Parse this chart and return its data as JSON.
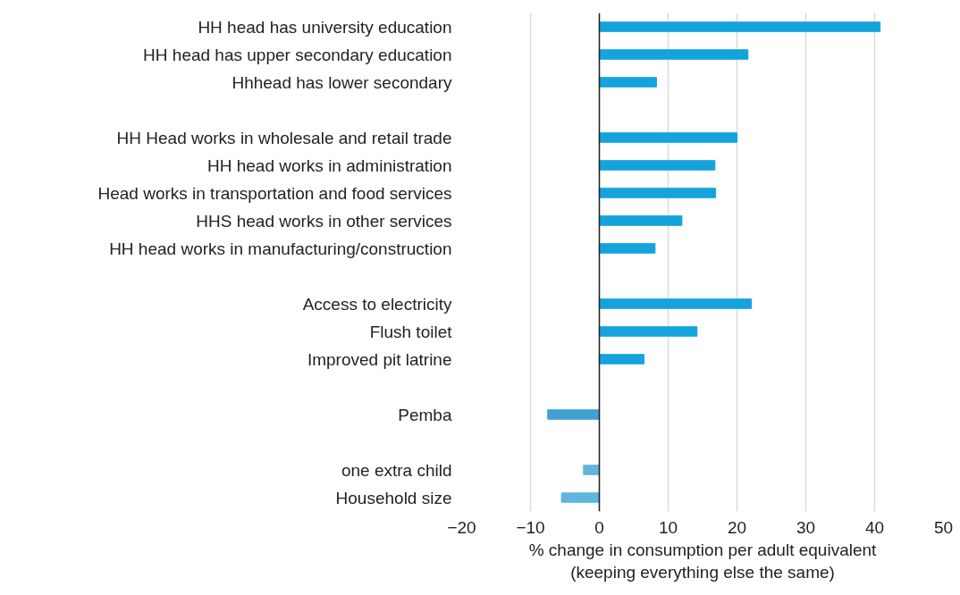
{
  "chart_data": {
    "type": "bar",
    "orientation": "horizontal",
    "xlabel": "% change in consumption per adult equivalent\n(keeping everything else the same)",
    "categories": [
      "HH head has university education",
      "HH head has upper secondary education",
      "Hhhead has lower secondary",
      null,
      "HH Head works in wholesale and retail trade",
      "HH head works in administration",
      "Head works in transportation and food services",
      "HHS head works in other services",
      "HH head works in manufacturing/construction",
      null,
      "Access to electricity",
      "Flush toilet",
      "Improved pit latrine",
      null,
      "Pemba",
      null,
      "one extra child",
      "Household size"
    ],
    "values": [
      40.8,
      21.6,
      8.3,
      null,
      20.0,
      16.8,
      16.9,
      12.0,
      8.1,
      null,
      22.1,
      14.2,
      6.5,
      null,
      -7.5,
      null,
      -2.3,
      -5.5
    ],
    "colors": [
      "#14a3dc",
      "#14a3dc",
      "#14a3dc",
      null,
      "#14a3dc",
      "#14a3dc",
      "#14a3dc",
      "#14a3dc",
      "#14a3dc",
      null,
      "#14a3dc",
      "#14a3dc",
      "#14a3dc",
      null,
      "#42a1d3",
      null,
      "#60b5dd",
      "#60b5dd"
    ],
    "xlim": [
      -20,
      50
    ],
    "xticks": [
      {
        "value": -20,
        "label": "−20"
      },
      {
        "value": -10,
        "label": "−10"
      },
      0,
      10,
      20,
      30,
      40,
      50
    ],
    "ref_lines": [
      {
        "axis": "x",
        "value": 0,
        "color": "#222222"
      }
    ],
    "grid": "x"
  }
}
